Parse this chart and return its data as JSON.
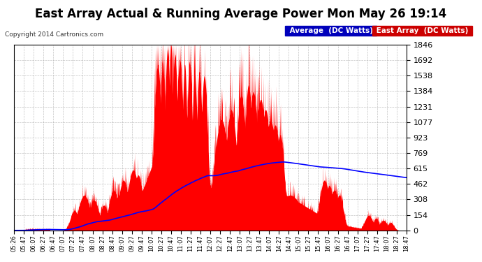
{
  "title": "East Array Actual & Running Average Power Mon May 26 19:14",
  "copyright": "Copyright 2014 Cartronics.com",
  "ylabel_right_ticks": [
    0.0,
    153.8,
    307.6,
    461.5,
    615.3,
    769.1,
    922.9,
    1076.7,
    1230.6,
    1384.4,
    1538.2,
    1692.0,
    1845.8
  ],
  "ymin": 0.0,
  "ymax": 1845.8,
  "background_color": "#ffffff",
  "plot_bg_color": "#ffffff",
  "grid_color": "#aaaaaa",
  "title_fontsize": 13,
  "legend_avg_label": "Average  (DC Watts)",
  "legend_east_label": "East Array  (DC Watts)",
  "legend_avg_bg": "#0000cc",
  "legend_east_bg": "#cc0000",
  "area_color": "#ff0000",
  "avg_line_color": "#0000ff",
  "x_tick_labels": [
    "05:26",
    "05:47",
    "06:07",
    "06:27",
    "06:47",
    "07:07",
    "07:27",
    "07:47",
    "08:07",
    "08:27",
    "08:47",
    "09:07",
    "09:27",
    "09:47",
    "10:07",
    "10:27",
    "10:47",
    "11:07",
    "11:27",
    "11:47",
    "12:07",
    "12:27",
    "12:47",
    "13:07",
    "13:27",
    "13:47",
    "14:07",
    "14:27",
    "14:47",
    "15:07",
    "15:27",
    "15:47",
    "16:07",
    "16:27",
    "16:47",
    "17:07",
    "17:27",
    "17:47",
    "18:07",
    "18:27",
    "18:47"
  ]
}
